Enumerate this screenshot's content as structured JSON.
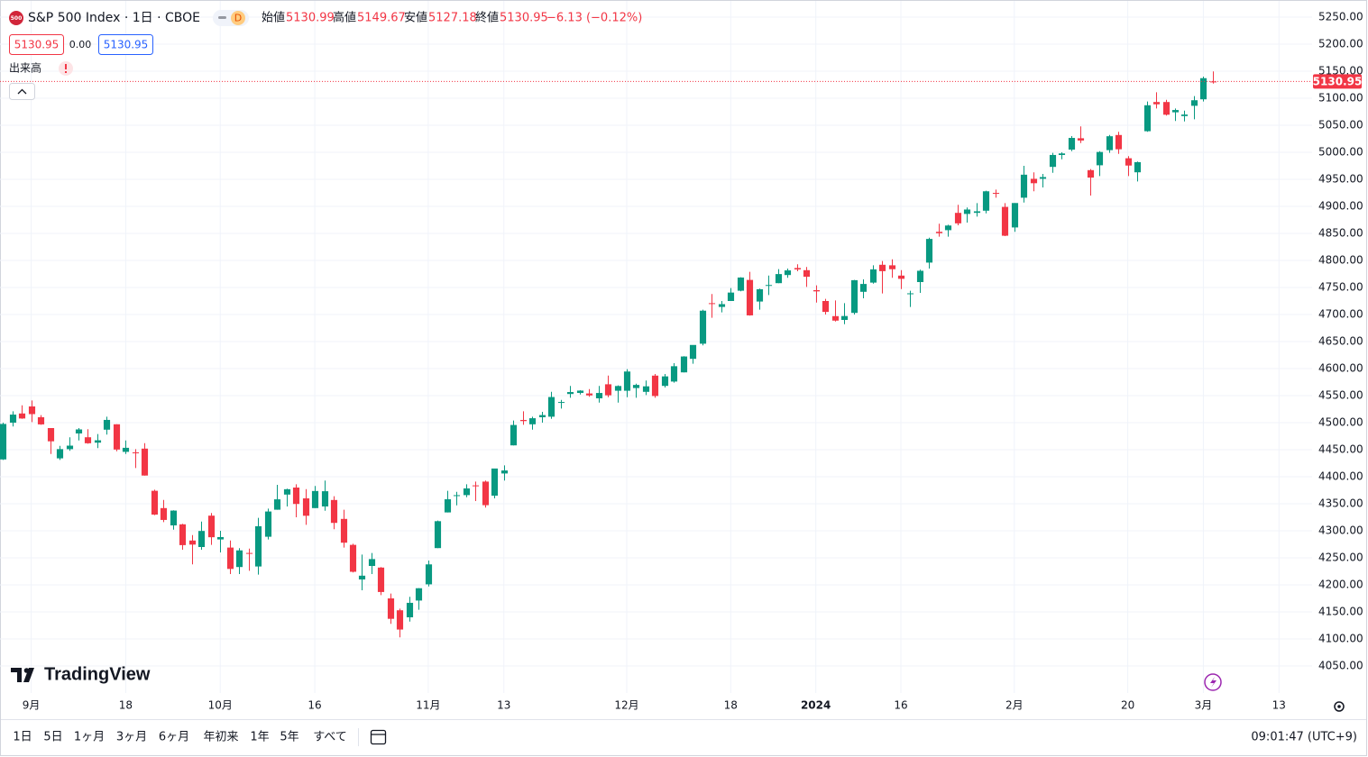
{
  "header": {
    "badge": "500",
    "symbol": "S&P 500 Index · 1日 · CBOE",
    "interval": "D",
    "open_label": "始値",
    "high_label": "高値",
    "low_label": "安値",
    "close_label": "終値",
    "change": "−6.13 (−0.12%)",
    "spread": "0.00",
    "volume_label": "出来高"
  },
  "logo": "TradingView",
  "toolbar": {
    "ranges": [
      "1日",
      "5日",
      "1ヶ月",
      "3ヶ月",
      "6ヶ月",
      "年初来",
      "1年",
      "5年",
      "すべて"
    ],
    "clock": "09:01:47 (UTC+9)"
  },
  "chart_data": {
    "type": "candlestick",
    "up_color": "#089981",
    "down_color": "#f23645",
    "grid": true,
    "last_price_line": true,
    "open": [
      4432,
      4500,
      4517,
      4530,
      4510,
      4490,
      4434,
      4451,
      4480,
      4473,
      4463,
      4487,
      4497,
      4446,
      4445,
      4452,
      4374,
      4342,
      4310,
      4312,
      4282,
      4270,
      4328,
      4284,
      4269,
      4233,
      4259,
      4234,
      4289,
      4339,
      4367,
      4380,
      4360,
      4342,
      4345,
      4357,
      4322,
      4274,
      4210,
      4235,
      4232,
      4175,
      4153,
      4140,
      4171,
      4201,
      4268,
      4334,
      4365,
      4366,
      4384,
      4391,
      4365,
      4406,
      4458,
      4505,
      4497,
      4510,
      4511,
      4538,
      4553,
      4555,
      4554,
      4545,
      4571,
      4559,
      4559,
      4564,
      4557,
      4587,
      4568,
      4576,
      4593,
      4618,
      4646,
      4721,
      4714,
      4725,
      4744,
      4764,
      4724,
      4753,
      4758,
      4773,
      4786,
      4782,
      4745,
      4725,
      4697,
      4690,
      4703,
      4742,
      4759,
      4792,
      4791,
      4772,
      4739,
      4760,
      4796,
      4853,
      4856,
      4888,
      4886,
      4888,
      4892,
      4925,
      4899,
      4861,
      4916,
      4951,
      4951,
      4973,
      4995,
      5005,
      5026,
      4967,
      4976,
      5004,
      5032,
      4989,
      4963,
      5039,
      5093,
      5093,
      5074,
      5067,
      5086,
      5098,
      5130.99
    ],
    "high": [
      4500,
      4521,
      4532,
      4541,
      4514,
      4490,
      4457,
      4473,
      4490,
      4488,
      4479,
      4511,
      4497,
      4467,
      4451,
      4462,
      4376,
      4357,
      4338,
      4313,
      4292,
      4317,
      4333,
      4300,
      4282,
      4268,
      4267,
      4324,
      4341,
      4385,
      4378,
      4386,
      4377,
      4383,
      4393,
      4364,
      4339,
      4276,
      4256,
      4259,
      4233,
      4184,
      4156,
      4178,
      4194,
      4245,
      4319,
      4374,
      4372,
      4386,
      4391,
      4393,
      4415,
      4421,
      4504,
      4521,
      4511,
      4520,
      4557,
      4542,
      4568,
      4560,
      4562,
      4568,
      4587,
      4569,
      4599,
      4572,
      4578,
      4590,
      4590,
      4610,
      4623,
      4643,
      4709,
      4738,
      4725,
      4749,
      4769,
      4779,
      4748,
      4772,
      4784,
      4785,
      4793,
      4788,
      4754,
      4729,
      4726,
      4721,
      4764,
      4765,
      4791,
      4799,
      4802,
      4782,
      4744,
      4783,
      4842,
      4868,
      4866,
      4903,
      4898,
      4906,
      4929,
      4931,
      4906,
      4906,
      4975,
      4963,
      4960,
      4999,
      5000,
      5030,
      5048,
      4969,
      5002,
      5032,
      5038,
      4993,
      4983,
      5094,
      5111,
      5097,
      5081,
      5077,
      5104,
      5140,
      5149.67
    ],
    "low": [
      4431,
      4493,
      4507,
      4501,
      4496,
      4442,
      4431,
      4448,
      4467,
      4461,
      4453,
      4478,
      4447,
      4442,
      4416,
      4402,
      4329,
      4316,
      4302,
      4265,
      4238,
      4265,
      4274,
      4260,
      4220,
      4220,
      4226,
      4219,
      4284,
      4339,
      4345,
      4325,
      4311,
      4342,
      4337,
      4303,
      4269,
      4223,
      4190,
      4220,
      4181,
      4128,
      4103,
      4132,
      4154,
      4197,
      4268,
      4334,
      4347,
      4362,
      4355,
      4343,
      4360,
      4393,
      4458,
      4496,
      4487,
      4500,
      4507,
      4526,
      4546,
      4552,
      4548,
      4537,
      4547,
      4537,
      4547,
      4546,
      4551,
      4546,
      4565,
      4574,
      4593,
      4609,
      4643,
      4694,
      4704,
      4725,
      4743,
      4698,
      4709,
      4736,
      4758,
      4768,
      4780,
      4751,
      4722,
      4700,
      4687,
      4682,
      4700,
      4730,
      4757,
      4739,
      4768,
      4747,
      4714,
      4740,
      4785,
      4844,
      4844,
      4865,
      4870,
      4881,
      4887,
      4916,
      4845,
      4853,
      4907,
      4928,
      4935,
      4962,
      4987,
      5002,
      5017,
      4920,
      4956,
      4999,
      4997,
      4956,
      4946,
      5038,
      5081,
      5068,
      5058,
      5057,
      5061,
      5094,
      5127.18
    ],
    "close": [
      4497.6,
      4514.9,
      4507.7,
      4515.8,
      4496.8,
      4465.5,
      4451.1,
      4457.5,
      4487.5,
      4461.9,
      4467.4,
      4505.1,
      4450.3,
      4453.5,
      4443.9,
      4402.2,
      4330,
      4320.1,
      4337.4,
      4273.5,
      4274.5,
      4299.7,
      4288.1,
      4288.4,
      4229.5,
      4263.8,
      4258.2,
      4308.5,
      4335.7,
      4358.2,
      4376.9,
      4349.6,
      4327.8,
      4373.6,
      4373.2,
      4314.6,
      4278,
      4224.2,
      4217,
      4247.7,
      4186.8,
      4137.2,
      4117.4,
      4166.8,
      4193.8,
      4237.9,
      4317.8,
      4358.3,
      4365.9,
      4378.4,
      4382.8,
      4347.4,
      4415.2,
      4411.6,
      4495.7,
      4502.9,
      4508.2,
      4514,
      4547.4,
      4538.2,
      4556.6,
      4559.3,
      4550.4,
      4554.9,
      4550.6,
      4567.8,
      4594.6,
      4569.8,
      4567.2,
      4549.3,
      4585.6,
      4604.4,
      4622.4,
      4643.7,
      4707.1,
      4719.6,
      4719.2,
      4740.6,
      4768.4,
      4698.4,
      4746.8,
      4754.6,
      4774.8,
      4781.6,
      4783.4,
      4769.8,
      4742.8,
      4704.8,
      4688.7,
      4697.2,
      4763.5,
      4756.5,
      4783.5,
      4780.2,
      4783.8,
      4766,
      4739.2,
      4780.9,
      4839.8,
      4850.4,
      4864.6,
      4868.6,
      4894.2,
      4890.9,
      4927.9,
      4924.9,
      4845.7,
      4906.2,
      4958.6,
      4942.8,
      4954.2,
      4995.1,
      4997.9,
      5026.6,
      5021.8,
      4953.2,
      5000.6,
      5029.7,
      5005.6,
      4975.5,
      4981.8,
      5087,
      5088.8,
      5069.5,
      5078.2,
      5069.8,
      5096.3,
      5137.1,
      5130.95
    ],
    "xlim": [
      -0.3,
      138.5
    ],
    "xticks": [
      {
        "value": 3,
        "label": "9月"
      },
      {
        "value": 13,
        "label": "18"
      },
      {
        "value": 23,
        "label": "10月"
      },
      {
        "value": 33,
        "label": "16"
      },
      {
        "value": 45,
        "label": "11月"
      },
      {
        "value": 53,
        "label": "13"
      },
      {
        "value": 66,
        "label": "12月"
      },
      {
        "value": 77,
        "label": "18"
      },
      {
        "value": 86,
        "label": "2024"
      },
      {
        "value": 95,
        "label": "16"
      },
      {
        "value": 107,
        "label": "2月"
      },
      {
        "value": 119,
        "label": "20"
      },
      {
        "value": 127,
        "label": "3月"
      },
      {
        "value": 135,
        "label": "13"
      }
    ],
    "ylim": [
      4000,
      5280
    ],
    "yticks": [
      {
        "value": 4050,
        "label": "4050.00"
      },
      {
        "value": 4100,
        "label": "4100.00"
      },
      {
        "value": 4150,
        "label": "4150.00"
      },
      {
        "value": 4200,
        "label": "4200.00"
      },
      {
        "value": 4250,
        "label": "4250.00"
      },
      {
        "value": 4300,
        "label": "4300.00"
      },
      {
        "value": 4350,
        "label": "4350.00"
      },
      {
        "value": 4400,
        "label": "4400.00"
      },
      {
        "value": 4450,
        "label": "4450.00"
      },
      {
        "value": 4500,
        "label": "4500.00"
      },
      {
        "value": 4550,
        "label": "4550.00"
      },
      {
        "value": 4600,
        "label": "4600.00"
      },
      {
        "value": 4650,
        "label": "4650.00"
      },
      {
        "value": 4700,
        "label": "4700.00"
      },
      {
        "value": 4750,
        "label": "4750.00"
      },
      {
        "value": 4800,
        "label": "4800.00"
      },
      {
        "value": 4850,
        "label": "4850.00"
      },
      {
        "value": 4900,
        "label": "4900.00"
      },
      {
        "value": 4950,
        "label": "4950.00"
      },
      {
        "value": 5000,
        "label": "5000.00"
      },
      {
        "value": 5050,
        "label": "5050.00"
      },
      {
        "value": 5100,
        "label": "5100.00"
      },
      {
        "value": 5150,
        "label": "5150.00"
      },
      {
        "value": 5200,
        "label": "5200.00"
      },
      {
        "value": 5250,
        "label": "5250.00"
      }
    ]
  }
}
